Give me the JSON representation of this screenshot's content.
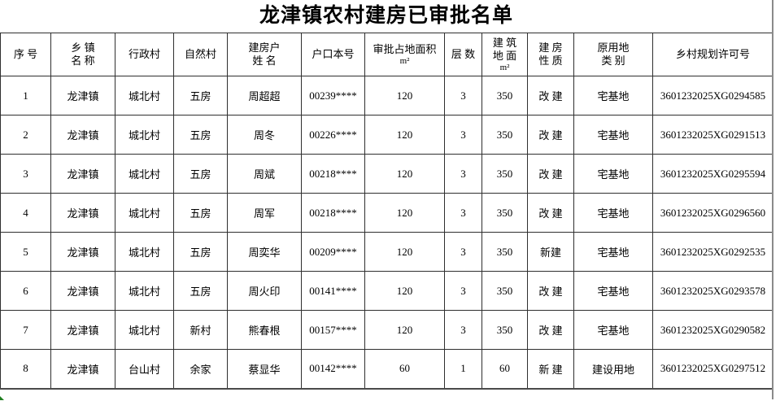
{
  "title": "龙津镇农村建房已审批名单",
  "table": {
    "headers": [
      [
        "序  号"
      ],
      [
        "乡 镇",
        "名 称"
      ],
      [
        "行政村"
      ],
      [
        "自然村"
      ],
      [
        "建房户",
        "姓 名"
      ],
      [
        "户口本号"
      ],
      [
        "审批占地面积",
        "m²"
      ],
      [
        "层  数"
      ],
      [
        "建 筑",
        "地 面",
        "m²"
      ],
      [
        "建 房",
        "性 质"
      ],
      [
        "原用地",
        "类 别"
      ],
      [
        "乡村规划许可号"
      ]
    ],
    "rows": [
      [
        "1",
        "龙津镇",
        "城北村",
        "五房",
        "周超超",
        "00239****",
        "120",
        "3",
        "350",
        "改 建",
        "宅基地",
        "3601232025XG0294585"
      ],
      [
        "2",
        "龙津镇",
        "城北村",
        "五房",
        "周冬",
        "00226****",
        "120",
        "3",
        "350",
        "改 建",
        "宅基地",
        "3601232025XG0291513"
      ],
      [
        "3",
        "龙津镇",
        "城北村",
        "五房",
        "周斌",
        "00218****",
        "120",
        "3",
        "350",
        "改 建",
        "宅基地",
        "3601232025XG0295594"
      ],
      [
        "4",
        "龙津镇",
        "城北村",
        "五房",
        "周军",
        "00218****",
        "120",
        "3",
        "350",
        "改 建",
        "宅基地",
        "3601232025XG0296560"
      ],
      [
        "5",
        "龙津镇",
        "城北村",
        "五房",
        "周奕华",
        "00209****",
        "120",
        "3",
        "350",
        "新建",
        "宅基地",
        "3601232025XG0292535"
      ],
      [
        "6",
        "龙津镇",
        "城北村",
        "五房",
        "周火印",
        "00141****",
        "120",
        "3",
        "350",
        "改 建",
        "宅基地",
        "3601232025XG0293578"
      ],
      [
        "7",
        "龙津镇",
        "城北村",
        "新村",
        "熊春根",
        "00157****",
        "120",
        "3",
        "350",
        "改 建",
        "宅基地",
        "3601232025XG0290582"
      ],
      [
        "8",
        "龙津镇",
        "台山村",
        "余家",
        "蔡显华",
        "00142****",
        "60",
        "1",
        "60",
        "新 建",
        "建设用地",
        "3601232025XG0297512"
      ]
    ]
  },
  "colors": {
    "grid_border": "#2f2f2f",
    "page_edge_line": "#8a8a8a",
    "corner_mark": "#1e7e1e",
    "text": "#000000",
    "background": "#ffffff"
  }
}
